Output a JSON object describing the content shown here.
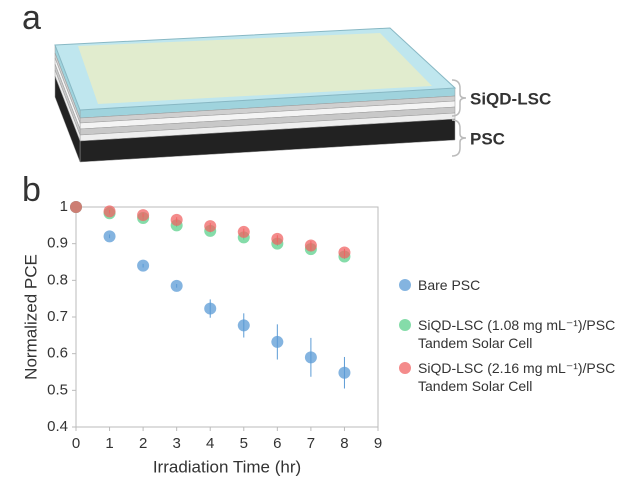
{
  "panel_a": {
    "label": "a",
    "layer_labels": [
      "SiQD-LSC",
      "PSC"
    ]
  },
  "panel_b": {
    "label": "b"
  },
  "chart_data": {
    "type": "scatter",
    "xlabel": "Irradiation Time (hr)",
    "ylabel": "Normalized PCE",
    "x": [
      0,
      1,
      2,
      3,
      4,
      5,
      6,
      7,
      8
    ],
    "xlim": [
      0,
      9
    ],
    "xticks": [
      0,
      1,
      2,
      3,
      4,
      5,
      6,
      7,
      8,
      9
    ],
    "ylim": [
      0.4,
      1
    ],
    "yticks": [
      0.4,
      0.5,
      0.6,
      0.7,
      0.8,
      0.9,
      1
    ],
    "grid": false,
    "series": [
      {
        "name": "Bare PSC",
        "color": "#5b9bd5",
        "values": [
          1,
          0.92,
          0.84,
          0.785,
          0.723,
          0.677,
          0.632,
          0.59,
          0.548
        ],
        "errors": [
          0,
          0.005,
          0.005,
          0.005,
          0.025,
          0.033,
          0.048,
          0.053,
          0.043
        ]
      },
      {
        "name": "SiQD-LSC (1.08 mg mL⁻¹)/PSC Tandem Solar Cell",
        "color": "#5cd08c",
        "values": [
          1,
          0.983,
          0.97,
          0.95,
          0.935,
          0.917,
          0.9,
          0.885,
          0.865
        ],
        "errors": [
          0,
          0.004,
          0.005,
          0.005,
          0.005,
          0.006,
          0.006,
          0.007,
          0.007
        ]
      },
      {
        "name": "SiQD-LSC (2.16 mg mL⁻¹)/PSC Tandem Solar Cell",
        "color": "#f06464",
        "values": [
          1,
          0.988,
          0.978,
          0.965,
          0.948,
          0.932,
          0.913,
          0.895,
          0.876
        ],
        "errors": [
          0,
          0.004,
          0.005,
          0.007,
          0.008,
          0.009,
          0.01,
          0.012,
          0.01
        ]
      }
    ]
  }
}
